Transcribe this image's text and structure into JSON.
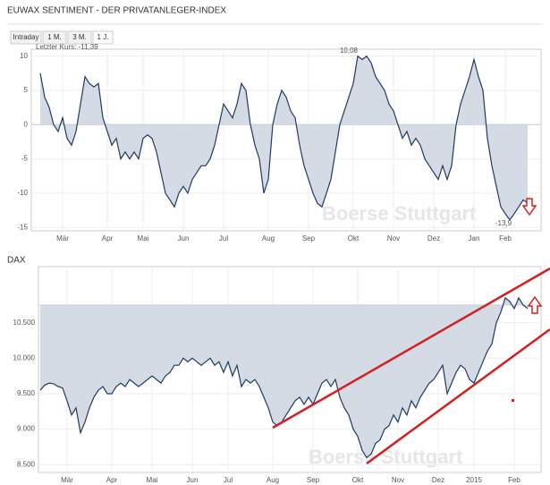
{
  "chart_data": [
    {
      "type": "line",
      "title": "EUWAX SENTIMENT - DER PRIVATANLEGER-INDEX",
      "buttons": [
        "Intraday",
        "1 M.",
        "3 M.",
        "1 J."
      ],
      "active_button": 3,
      "annotations": [
        "Letzter Kurs: -11,39",
        "10,08",
        "-13,9"
      ],
      "watermark": "Boerse Stuttgart",
      "color": "#1f3a5f",
      "fill": "#d5dbe5",
      "fill_base": 0,
      "grid": true,
      "values": [
        7.5,
        4,
        2.5,
        0,
        -1,
        1,
        -2,
        -3,
        -1,
        3,
        7,
        6,
        5.5,
        6,
        1,
        -1,
        -3,
        -2,
        -5,
        -4,
        -5,
        -4,
        -5,
        -2,
        -1.5,
        -2,
        -4,
        -7,
        -10,
        -11,
        -12,
        -10,
        -9,
        -10,
        -8,
        -7,
        -6,
        -6,
        -5,
        -3,
        0,
        3,
        2,
        1,
        3,
        6,
        5,
        0,
        -3,
        -5,
        -10,
        -8,
        0,
        3,
        5,
        4,
        2,
        1,
        -3,
        -6,
        -8,
        -10,
        -11.5,
        -12,
        -10,
        -8,
        -4,
        0,
        2,
        4,
        6,
        10,
        9.5,
        10,
        9,
        7,
        6,
        5,
        3,
        2,
        0,
        -2,
        -1,
        -3,
        -2,
        -3,
        -5,
        -6,
        -7,
        -8,
        -6,
        -8,
        -6,
        0,
        3,
        5,
        7,
        9.5,
        7,
        5,
        -2,
        -6,
        -9,
        -12,
        -13,
        -13.9,
        -13,
        -12,
        -11,
        -11.4
      ],
      "xlim": [
        -2,
        112
      ],
      "xticks": [
        {
          "value": 5,
          "label": "Mär"
        },
        {
          "value": 15,
          "label": "Apr"
        },
        {
          "value": 23,
          "label": "Mai"
        },
        {
          "value": 32,
          "label": "Jun"
        },
        {
          "value": 41,
          "label": "Jul"
        },
        {
          "value": 51,
          "label": "Aug"
        },
        {
          "value": 60,
          "label": "Sep"
        },
        {
          "value": 70,
          "label": "Okt"
        },
        {
          "value": 79,
          "label": "Nov"
        },
        {
          "value": 88,
          "label": "Dez"
        },
        {
          "value": 97,
          "label": "Jan"
        },
        {
          "value": 104,
          "label": "Feb"
        }
      ],
      "ylim": [
        -15.5,
        11
      ],
      "yticks": [
        10,
        5,
        0,
        -5,
        -10,
        -15
      ]
    },
    {
      "type": "line",
      "title": "DAX",
      "watermark": "Boerse Stuttgart",
      "color": "#1f3a5f",
      "fill": "#d5dbe5",
      "fill_base": 10750,
      "grid": true,
      "values": [
        9550,
        9620,
        9650,
        9640,
        9600,
        9580,
        9400,
        9200,
        9300,
        8950,
        9100,
        9300,
        9450,
        9550,
        9600,
        9500,
        9500,
        9600,
        9650,
        9600,
        9700,
        9650,
        9600,
        9650,
        9700,
        9750,
        9700,
        9650,
        9750,
        9800,
        9900,
        9900,
        10000,
        9950,
        10000,
        9950,
        9900,
        9950,
        10000,
        9900,
        9950,
        9800,
        9950,
        9750,
        9900,
        9600,
        9700,
        9650,
        9700,
        9600,
        9450,
        9300,
        9100,
        9050,
        9100,
        9200,
        9300,
        9400,
        9450,
        9350,
        9450,
        9350,
        9500,
        9650,
        9700,
        9600,
        9700,
        9450,
        9300,
        9200,
        9000,
        8900,
        8700,
        8600,
        8650,
        8800,
        8850,
        9000,
        9050,
        9200,
        9100,
        9300,
        9200,
        9400,
        9300,
        9450,
        9550,
        9650,
        9700,
        9800,
        9900,
        9500,
        9650,
        9800,
        9900,
        9850,
        9700,
        9650,
        9800,
        9950,
        10100,
        10200,
        10500,
        10650,
        10850,
        10800,
        10700,
        10850,
        10750,
        10700
      ],
      "xlim": [
        -0.4,
        112
      ],
      "xticks": [
        {
          "value": 6,
          "label": "Mär"
        },
        {
          "value": 16,
          "label": "Apr"
        },
        {
          "value": 25,
          "label": "Mai"
        },
        {
          "value": 34,
          "label": "Jun"
        },
        {
          "value": 42,
          "label": "Jul"
        },
        {
          "value": 52,
          "label": "Aug"
        },
        {
          "value": 61,
          "label": "Sep"
        },
        {
          "value": 71,
          "label": "Okt"
        },
        {
          "value": 80,
          "label": "Nov"
        },
        {
          "value": 89,
          "label": "Dez"
        },
        {
          "value": 97,
          "label": "2015"
        },
        {
          "value": 106,
          "label": "Feb"
        }
      ],
      "ylim": [
        8390,
        11290
      ],
      "yticks": [
        {
          "value": 10500,
          "label": "10.500"
        },
        {
          "value": 10000,
          "label": "10.000"
        },
        {
          "value": 9500,
          "label": "9.500"
        },
        {
          "value": 9000,
          "label": "9.000"
        },
        {
          "value": 8500,
          "label": "8.500"
        }
      ]
    }
  ]
}
